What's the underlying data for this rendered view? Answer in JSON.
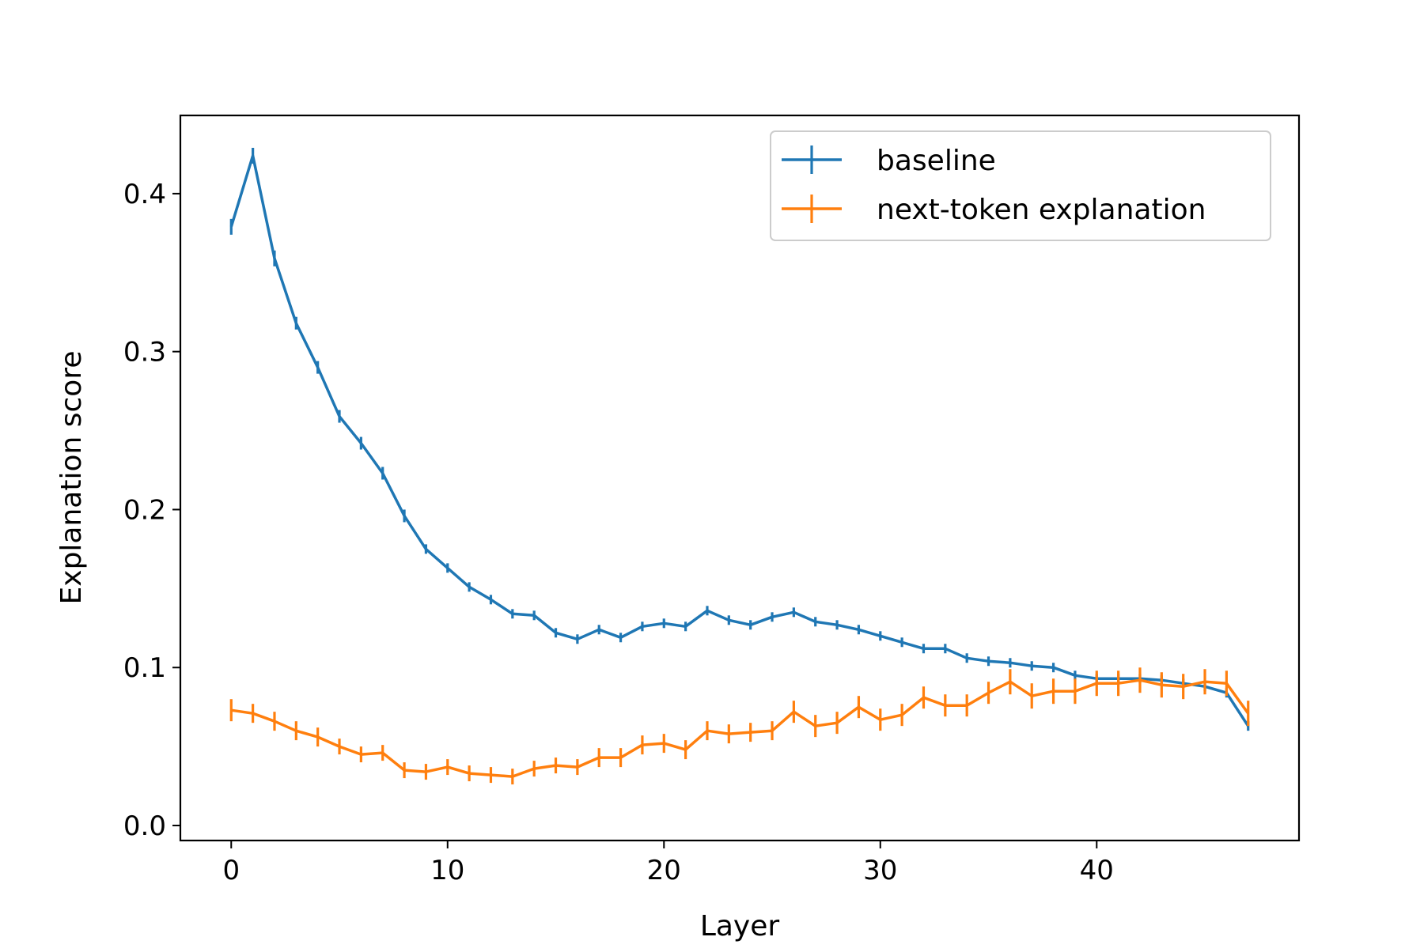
{
  "chart_data": {
    "type": "line",
    "title": "",
    "xlabel": "Layer",
    "ylabel": "Explanation score",
    "xlim": [
      -2.35,
      49.35
    ],
    "ylim": [
      -0.0095,
      0.4495
    ],
    "xticks": [
      "0",
      "10",
      "20",
      "30",
      "40"
    ],
    "yticks": [
      "0.0",
      "0.1",
      "0.2",
      "0.3",
      "0.4"
    ],
    "grid": false,
    "legend_position": "upper right",
    "x": [
      0,
      1,
      2,
      3,
      4,
      5,
      6,
      7,
      8,
      9,
      10,
      11,
      12,
      13,
      14,
      15,
      16,
      17,
      18,
      19,
      20,
      21,
      22,
      23,
      24,
      25,
      26,
      27,
      28,
      29,
      30,
      31,
      32,
      33,
      34,
      35,
      36,
      37,
      38,
      39,
      40,
      41,
      42,
      43,
      44,
      45,
      46,
      47
    ],
    "series": [
      {
        "name": "baseline",
        "color": "#1f77b4",
        "values": [
          0.379,
          0.424,
          0.359,
          0.318,
          0.29,
          0.259,
          0.242,
          0.223,
          0.196,
          0.175,
          0.163,
          0.151,
          0.143,
          0.134,
          0.133,
          0.122,
          0.118,
          0.124,
          0.119,
          0.126,
          0.128,
          0.126,
          0.136,
          0.13,
          0.127,
          0.132,
          0.135,
          0.129,
          0.127,
          0.124,
          0.12,
          0.116,
          0.112,
          0.112,
          0.106,
          0.104,
          0.103,
          0.101,
          0.1,
          0.095,
          0.093,
          0.093,
          0.093,
          0.092,
          0.09,
          0.088,
          0.084,
          0.063
        ],
        "errors": [
          0.005,
          0.005,
          0.005,
          0.004,
          0.004,
          0.004,
          0.004,
          0.004,
          0.004,
          0.003,
          0.003,
          0.003,
          0.003,
          0.003,
          0.003,
          0.003,
          0.003,
          0.003,
          0.003,
          0.003,
          0.003,
          0.003,
          0.003,
          0.003,
          0.003,
          0.003,
          0.003,
          0.003,
          0.003,
          0.003,
          0.003,
          0.003,
          0.003,
          0.003,
          0.003,
          0.003,
          0.003,
          0.003,
          0.003,
          0.003,
          0.003,
          0.003,
          0.003,
          0.003,
          0.003,
          0.003,
          0.003,
          0.003
        ]
      },
      {
        "name": "next-token explanation",
        "color": "#ff7f0e",
        "values": [
          0.073,
          0.071,
          0.066,
          0.06,
          0.056,
          0.05,
          0.045,
          0.046,
          0.035,
          0.034,
          0.037,
          0.033,
          0.032,
          0.031,
          0.036,
          0.038,
          0.037,
          0.043,
          0.043,
          0.051,
          0.052,
          0.048,
          0.06,
          0.058,
          0.059,
          0.06,
          0.072,
          0.063,
          0.065,
          0.075,
          0.067,
          0.07,
          0.081,
          0.076,
          0.076,
          0.084,
          0.091,
          0.082,
          0.085,
          0.085,
          0.09,
          0.09,
          0.092,
          0.089,
          0.088,
          0.091,
          0.09,
          0.071
        ],
        "errors": [
          0.007,
          0.006,
          0.006,
          0.006,
          0.006,
          0.005,
          0.005,
          0.005,
          0.005,
          0.005,
          0.005,
          0.005,
          0.005,
          0.005,
          0.005,
          0.005,
          0.005,
          0.006,
          0.006,
          0.006,
          0.006,
          0.006,
          0.006,
          0.006,
          0.006,
          0.006,
          0.007,
          0.007,
          0.007,
          0.007,
          0.007,
          0.007,
          0.007,
          0.007,
          0.007,
          0.007,
          0.008,
          0.008,
          0.008,
          0.008,
          0.008,
          0.008,
          0.008,
          0.008,
          0.008,
          0.008,
          0.008,
          0.008
        ]
      }
    ]
  }
}
